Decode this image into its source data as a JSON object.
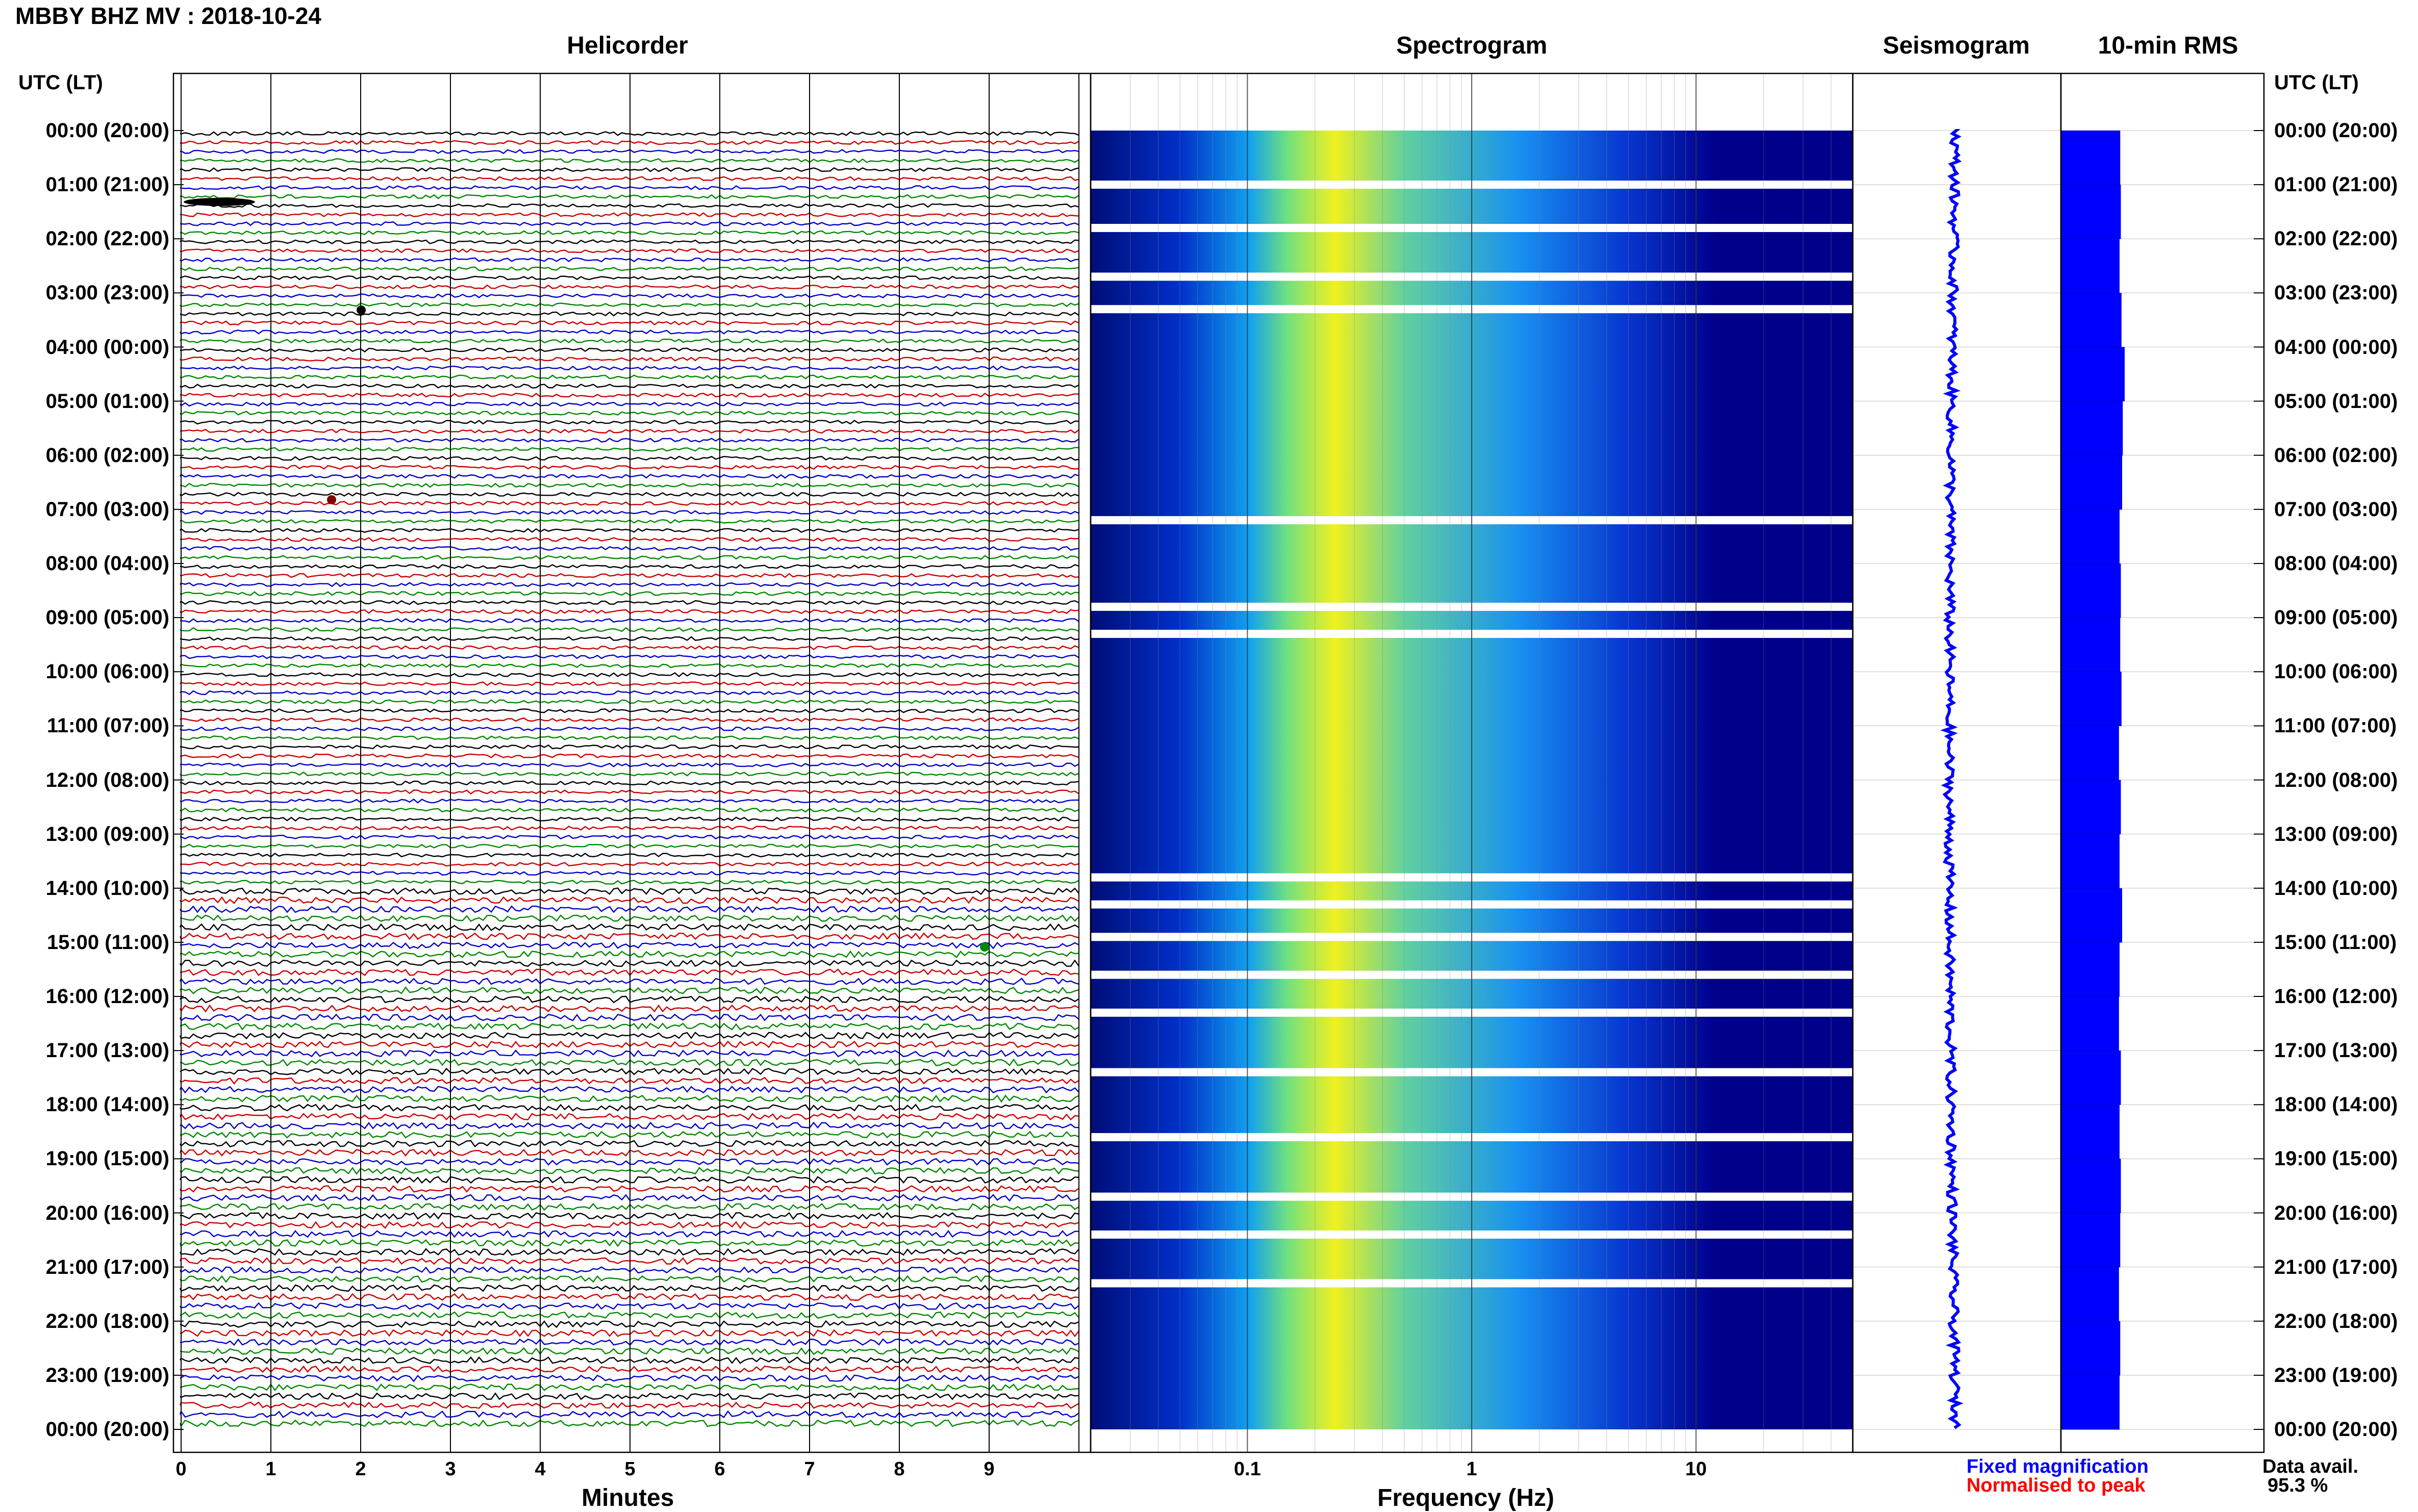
{
  "station_title": "MBBY BHZ MV : 2018-10-24",
  "panels": {
    "helicorder": "Helicorder",
    "spectrogram": "Spectrogram",
    "seismogram": "Seismogram",
    "rms": "10-min RMS"
  },
  "timezone_header": "UTC (LT)",
  "hour_labels": [
    "00:00 (20:00)",
    "01:00 (21:00)",
    "02:00 (22:00)",
    "03:00 (23:00)",
    "04:00 (00:00)",
    "05:00 (01:00)",
    "06:00 (02:00)",
    "07:00 (03:00)",
    "08:00 (04:00)",
    "09:00 (05:00)",
    "10:00 (06:00)",
    "11:00 (07:00)",
    "12:00 (08:00)",
    "13:00 (09:00)",
    "14:00 (10:00)",
    "15:00 (11:00)",
    "16:00 (12:00)",
    "17:00 (13:00)",
    "18:00 (14:00)",
    "19:00 (15:00)",
    "20:00 (16:00)",
    "21:00 (17:00)",
    "22:00 (18:00)",
    "23:00 (19:00)",
    "00:00 (20:00)"
  ],
  "helicorder_axis": {
    "title": "Minutes",
    "ticks": [
      "0",
      "1",
      "2",
      "3",
      "4",
      "5",
      "6",
      "7",
      "8",
      "9"
    ]
  },
  "spectrogram_axis": {
    "title": "Frequency (Hz)",
    "ticks": [
      "0.1",
      "1",
      "10"
    ]
  },
  "legend": {
    "fixed": "Fixed magnification",
    "normalised": "Normalised to peak"
  },
  "availability": {
    "label": "Data avail.",
    "value": "95.3 %"
  },
  "colors": {
    "trace_cycle": [
      "#000000",
      "#cc0000",
      "#0000cc",
      "#008800"
    ],
    "spectrogram_background": "#00008b",
    "spectrogram_energy": "#f0f020",
    "seismogram_trace": "#0000ff",
    "rms_bar": "#0000ff"
  },
  "chart_data": [
    {
      "type": "line",
      "name": "helicorder",
      "x_unit": "Minutes",
      "xlim": [
        0,
        10
      ],
      "rows_per_hour": 6,
      "row_minutes": 10,
      "hours": 24,
      "gaps_after_hour": 14
    },
    {
      "type": "heatmap",
      "name": "spectrogram",
      "xscale": "log",
      "xlim": [
        0.02,
        50
      ],
      "x_ticks": [
        0.1,
        1,
        10
      ],
      "dominant_band_hz": [
        0.15,
        0.4
      ],
      "data_gaps_utc_hours": [
        1.0,
        1.8,
        2.7,
        3.3,
        7.2,
        8.8,
        9.3,
        13.8,
        14.3,
        14.9,
        15.6,
        16.3,
        17.4,
        18.6,
        19.7,
        20.4,
        21.3
      ],
      "time_range_utc_hours": [
        0,
        24
      ]
    },
    {
      "type": "bar",
      "name": "10-min RMS",
      "bins_per_hour": 6,
      "values_relative": [
        0.93,
        0.94,
        0.92,
        0.95,
        1.0,
        0.97,
        0.96,
        0.92,
        0.94,
        0.93,
        0.95,
        0.91,
        0.94,
        0.92,
        0.96,
        0.92,
        0.91,
        0.94,
        0.92,
        0.94,
        0.93,
        0.91,
        0.93,
        0.92
      ]
    }
  ]
}
